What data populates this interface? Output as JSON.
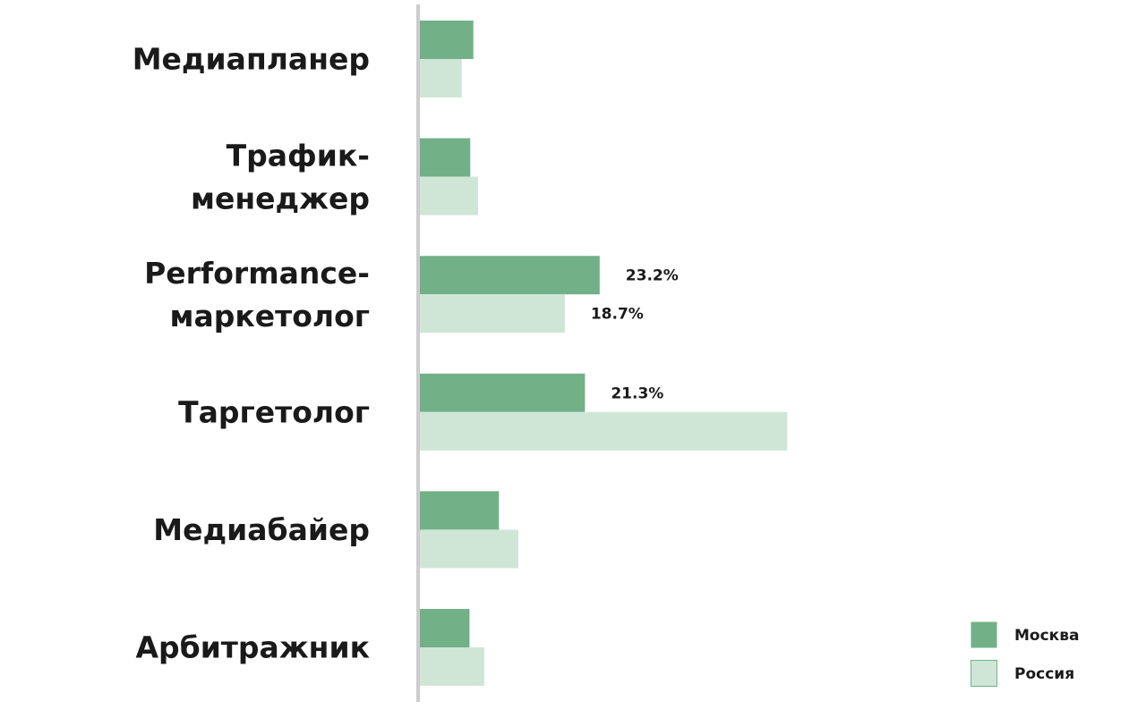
{
  "chart_data": {
    "type": "bar",
    "orientation": "horizontal",
    "categories": [
      "Медиапланер",
      "Трафик-менеджер",
      "Performance-маркетолог",
      "Таргетолог",
      "Медиабайер",
      "Арбитражник"
    ],
    "series": [
      {
        "name": "Москва",
        "color": "#72b087",
        "values": [
          6.9,
          6.5,
          23.2,
          21.3,
          10.2,
          6.4
        ],
        "value_labels": [
          null,
          null,
          "23.2%",
          "21.3%",
          null,
          null
        ]
      },
      {
        "name": "Россия",
        "color": "#cfe6d7",
        "values": [
          5.4,
          7.5,
          18.7,
          47.4,
          12.7,
          8.3
        ],
        "value_labels": [
          null,
          null,
          "18.7%",
          null,
          null,
          null
        ]
      }
    ],
    "legend": "bottom-right"
  }
}
